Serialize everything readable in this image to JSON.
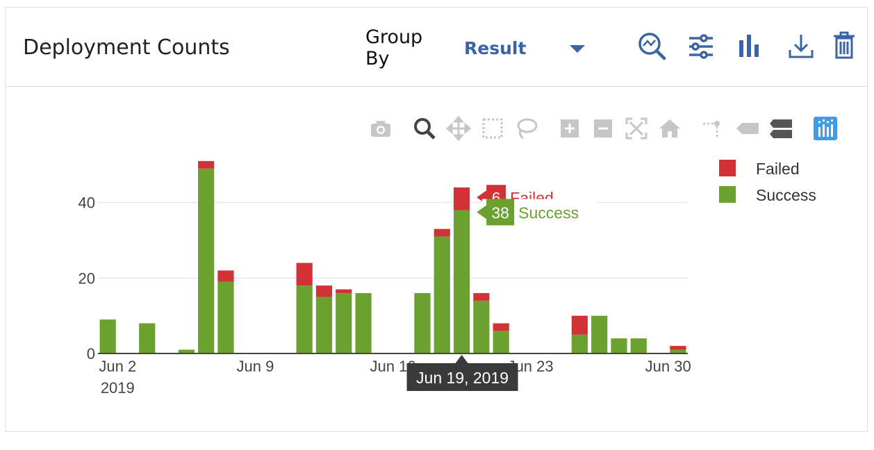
{
  "header": {
    "title": "Deployment Counts",
    "group_by_label": "Group By",
    "group_by_value": "Result"
  },
  "colors": {
    "failed": "#d23237",
    "success": "#6ba22f",
    "accent": "#3b64a6",
    "tooltip_bg": "#3a3a3a"
  },
  "icons": {
    "header": [
      "zoom-chart-icon",
      "sliders-icon",
      "bar-chart-icon",
      "download-icon",
      "trash-icon"
    ],
    "modebar": [
      "camera-icon",
      "zoom-icon",
      "pan-icon",
      "box-select-icon",
      "lasso-icon",
      "zoom-in-icon",
      "zoom-out-icon",
      "autoscale-icon",
      "reset-axes-icon",
      "spike-lines-icon",
      "hover-closest-icon",
      "hover-compare-icon",
      "plotly-logo-icon"
    ]
  },
  "chart_data": {
    "type": "bar",
    "stacked": true,
    "x": [
      "2019-06-01",
      "2019-06-02",
      "2019-06-03",
      "2019-06-04",
      "2019-06-05",
      "2019-06-06",
      "2019-06-07",
      "2019-06-08",
      "2019-06-09",
      "2019-06-10",
      "2019-06-11",
      "2019-06-12",
      "2019-06-13",
      "2019-06-14",
      "2019-06-15",
      "2019-06-16",
      "2019-06-17",
      "2019-06-18",
      "2019-06-19",
      "2019-06-20",
      "2019-06-21",
      "2019-06-22",
      "2019-06-23",
      "2019-06-24",
      "2019-06-25",
      "2019-06-26",
      "2019-06-27",
      "2019-06-28",
      "2019-06-29",
      "2019-06-30"
    ],
    "series": [
      {
        "name": "Success",
        "values": [
          9,
          0,
          8,
          0,
          1,
          49,
          19,
          0,
          0,
          0,
          18,
          15,
          16,
          16,
          0,
          0,
          16,
          31,
          38,
          14,
          6,
          0,
          0,
          0,
          5,
          10,
          4,
          4,
          0,
          1
        ]
      },
      {
        "name": "Failed",
        "values": [
          0,
          0,
          0,
          0,
          0,
          2,
          3,
          0,
          0,
          0,
          6,
          3,
          1,
          0,
          0,
          0,
          0,
          2,
          6,
          2,
          2,
          0,
          0,
          0,
          5,
          0,
          0,
          0,
          0,
          1
        ]
      }
    ],
    "ylim": [
      0,
      53
    ],
    "y_ticks": [
      "0",
      "20",
      "40"
    ],
    "x_ticks": [
      {
        "date": "2019-06-02",
        "label": "Jun 2",
        "sublabel": "2019"
      },
      {
        "date": "2019-06-09",
        "label": "Jun 9",
        "sublabel": ""
      },
      {
        "date": "2019-06-16",
        "label": "Jun 16",
        "sublabel": ""
      },
      {
        "date": "2019-06-23",
        "label": "Jun 23",
        "sublabel": ""
      },
      {
        "date": "2019-06-30",
        "label": "Jun 30",
        "sublabel": ""
      }
    ],
    "legend": {
      "position": "right",
      "entries": [
        "Failed",
        "Success"
      ]
    },
    "grid": true,
    "hover": {
      "date": "2019-06-19",
      "x_label": "Jun 19, 2019",
      "failed_value": "6",
      "failed_label": "Failed",
      "success_value": "38",
      "success_label": "Success"
    }
  }
}
